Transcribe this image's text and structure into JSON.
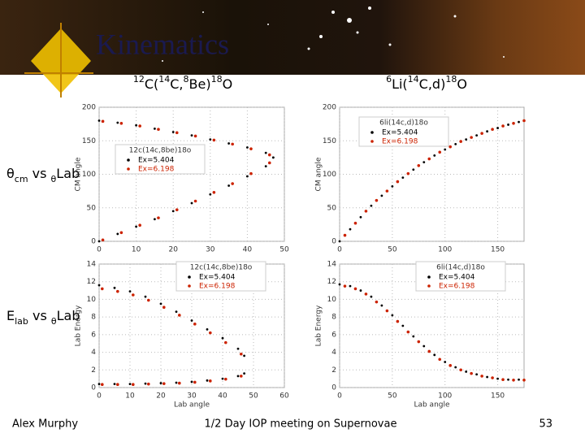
{
  "slide": {
    "title": "Kinematics",
    "reactions": [
      [
        "12",
        "C(",
        "14",
        "C,",
        "8",
        "Be)",
        "18",
        "O"
      ],
      [
        "6",
        "Li(",
        "14",
        "C,d)",
        "18",
        "O"
      ]
    ],
    "left_labels": [
      [
        "θ",
        "cm",
        " vs ",
        "θ",
        "Lab"
      ],
      [
        "E",
        "lab",
        " vs ",
        "θ",
        "Lab"
      ]
    ],
    "footer": {
      "author": "Alex Murphy",
      "meeting": "1/2 Day IOP meeting on Supernovae",
      "page": "53"
    }
  },
  "chart_data": [
    {
      "type": "scatter",
      "legend_title": "12c(14c,8be)18o",
      "y_label": "CM angle",
      "xlim": [
        0,
        50
      ],
      "xticks": [
        0,
        10,
        20,
        30,
        40,
        50
      ],
      "ylim": [
        0,
        200
      ],
      "yticks": [
        0,
        50,
        100,
        150,
        200
      ],
      "grid": true,
      "series": [
        {
          "name": "Ex=5.404",
          "color": "#000000",
          "x": [
            0,
            5,
            10,
            15,
            20,
            25,
            30,
            35,
            40,
            45,
            47,
            0,
            5,
            10,
            15,
            20,
            25,
            30,
            35,
            40,
            45,
            47
          ],
          "values": [
            180,
            177,
            173,
            168,
            163,
            158,
            152,
            146,
            140,
            132,
            125,
            0,
            11,
            22,
            33,
            45,
            57,
            70,
            83,
            97,
            112,
            125
          ]
        },
        {
          "name": "Ex=6.198",
          "color": "#cc2200",
          "x": [
            1,
            6,
            11,
            16,
            21,
            26,
            31,
            36,
            41,
            46,
            1,
            6,
            11,
            16,
            21,
            26,
            31,
            36,
            41,
            46
          ],
          "values": [
            179,
            176,
            172,
            167,
            162,
            157,
            151,
            145,
            138,
            129,
            2,
            13,
            24,
            35,
            47,
            60,
            73,
            86,
            101,
            117
          ]
        }
      ]
    },
    {
      "type": "scatter",
      "legend_title": "6li(14c,d)18o",
      "y_label": "CM angle",
      "xlim": [
        0,
        175
      ],
      "xticks": [
        0,
        50,
        100,
        150
      ],
      "ylim": [
        0,
        200
      ],
      "yticks": [
        0,
        50,
        100,
        150,
        200
      ],
      "grid": true,
      "series": [
        {
          "name": "Ex=5.404",
          "color": "#000000",
          "x": [
            0,
            10,
            20,
            30,
            40,
            50,
            60,
            70,
            80,
            90,
            100,
            110,
            120,
            130,
            140,
            150,
            160,
            170
          ],
          "values": [
            0,
            18,
            36,
            53,
            68,
            82,
            95,
            107,
            118,
            128,
            137,
            145,
            152,
            158,
            164,
            169,
            174,
            178
          ]
        },
        {
          "name": "Ex=6.198",
          "color": "#cc2200",
          "x": [
            5,
            15,
            25,
            35,
            45,
            55,
            65,
            75,
            85,
            95,
            105,
            115,
            125,
            135,
            145,
            155,
            165,
            175
          ],
          "values": [
            9,
            27,
            45,
            61,
            75,
            89,
            101,
            113,
            123,
            133,
            141,
            149,
            155,
            161,
            167,
            172,
            176,
            180
          ]
        }
      ]
    },
    {
      "type": "scatter",
      "legend_title": "12c(14c,8be)18o",
      "x_label": "Lab angle",
      "y_label": "Lab Energy",
      "xlim": [
        0,
        60
      ],
      "xticks": [
        0,
        10,
        20,
        30,
        40,
        50,
        60
      ],
      "ylim": [
        0,
        14
      ],
      "yticks": [
        0,
        2,
        4,
        6,
        8,
        10,
        12,
        14
      ],
      "grid": true,
      "series": [
        {
          "name": "Ex=5.404",
          "color": "#000000",
          "x": [
            0,
            5,
            10,
            15,
            20,
            25,
            30,
            35,
            40,
            45,
            47,
            0,
            5,
            10,
            15,
            20,
            25,
            30,
            35,
            40,
            45,
            47
          ],
          "values": [
            11.6,
            11.3,
            10.9,
            10.3,
            9.5,
            8.6,
            7.6,
            6.6,
            5.6,
            4.4,
            3.6,
            0.4,
            0.4,
            0.4,
            0.45,
            0.5,
            0.55,
            0.65,
            0.8,
            1.0,
            1.3,
            1.6
          ]
        },
        {
          "name": "Ex=6.198",
          "color": "#cc2200",
          "x": [
            1,
            6,
            11,
            16,
            21,
            26,
            31,
            36,
            41,
            46,
            1,
            6,
            11,
            16,
            21,
            26,
            31,
            36,
            41,
            46
          ],
          "values": [
            11.2,
            10.9,
            10.5,
            9.9,
            9.1,
            8.2,
            7.2,
            6.2,
            5.1,
            3.8,
            0.35,
            0.35,
            0.35,
            0.4,
            0.45,
            0.5,
            0.6,
            0.75,
            0.95,
            1.3
          ]
        }
      ]
    },
    {
      "type": "scatter",
      "legend_title": "6li(14c,d)18o",
      "x_label": "Lab angle",
      "y_label": "Lab Energy",
      "xlim": [
        0,
        175
      ],
      "xticks": [
        0,
        50,
        100,
        150
      ],
      "ylim": [
        0,
        14
      ],
      "yticks": [
        0,
        2,
        4,
        6,
        8,
        10,
        12,
        14
      ],
      "grid": true,
      "series": [
        {
          "name": "Ex=5.404",
          "color": "#000000",
          "x": [
            0,
            10,
            20,
            30,
            40,
            50,
            60,
            70,
            80,
            90,
            100,
            110,
            120,
            130,
            140,
            150,
            160,
            170
          ],
          "values": [
            11.7,
            11.5,
            11.0,
            10.3,
            9.3,
            8.2,
            7.0,
            5.8,
            4.7,
            3.7,
            2.9,
            2.3,
            1.8,
            1.5,
            1.2,
            1.0,
            0.9,
            0.9
          ]
        },
        {
          "name": "Ex=6.198",
          "color": "#cc2200",
          "x": [
            5,
            15,
            25,
            35,
            45,
            55,
            65,
            75,
            85,
            95,
            105,
            115,
            125,
            135,
            145,
            155,
            165,
            175
          ],
          "values": [
            11.5,
            11.2,
            10.6,
            9.7,
            8.7,
            7.5,
            6.3,
            5.2,
            4.1,
            3.2,
            2.5,
            2.0,
            1.6,
            1.3,
            1.1,
            0.9,
            0.85,
            0.85
          ]
        }
      ]
    }
  ]
}
